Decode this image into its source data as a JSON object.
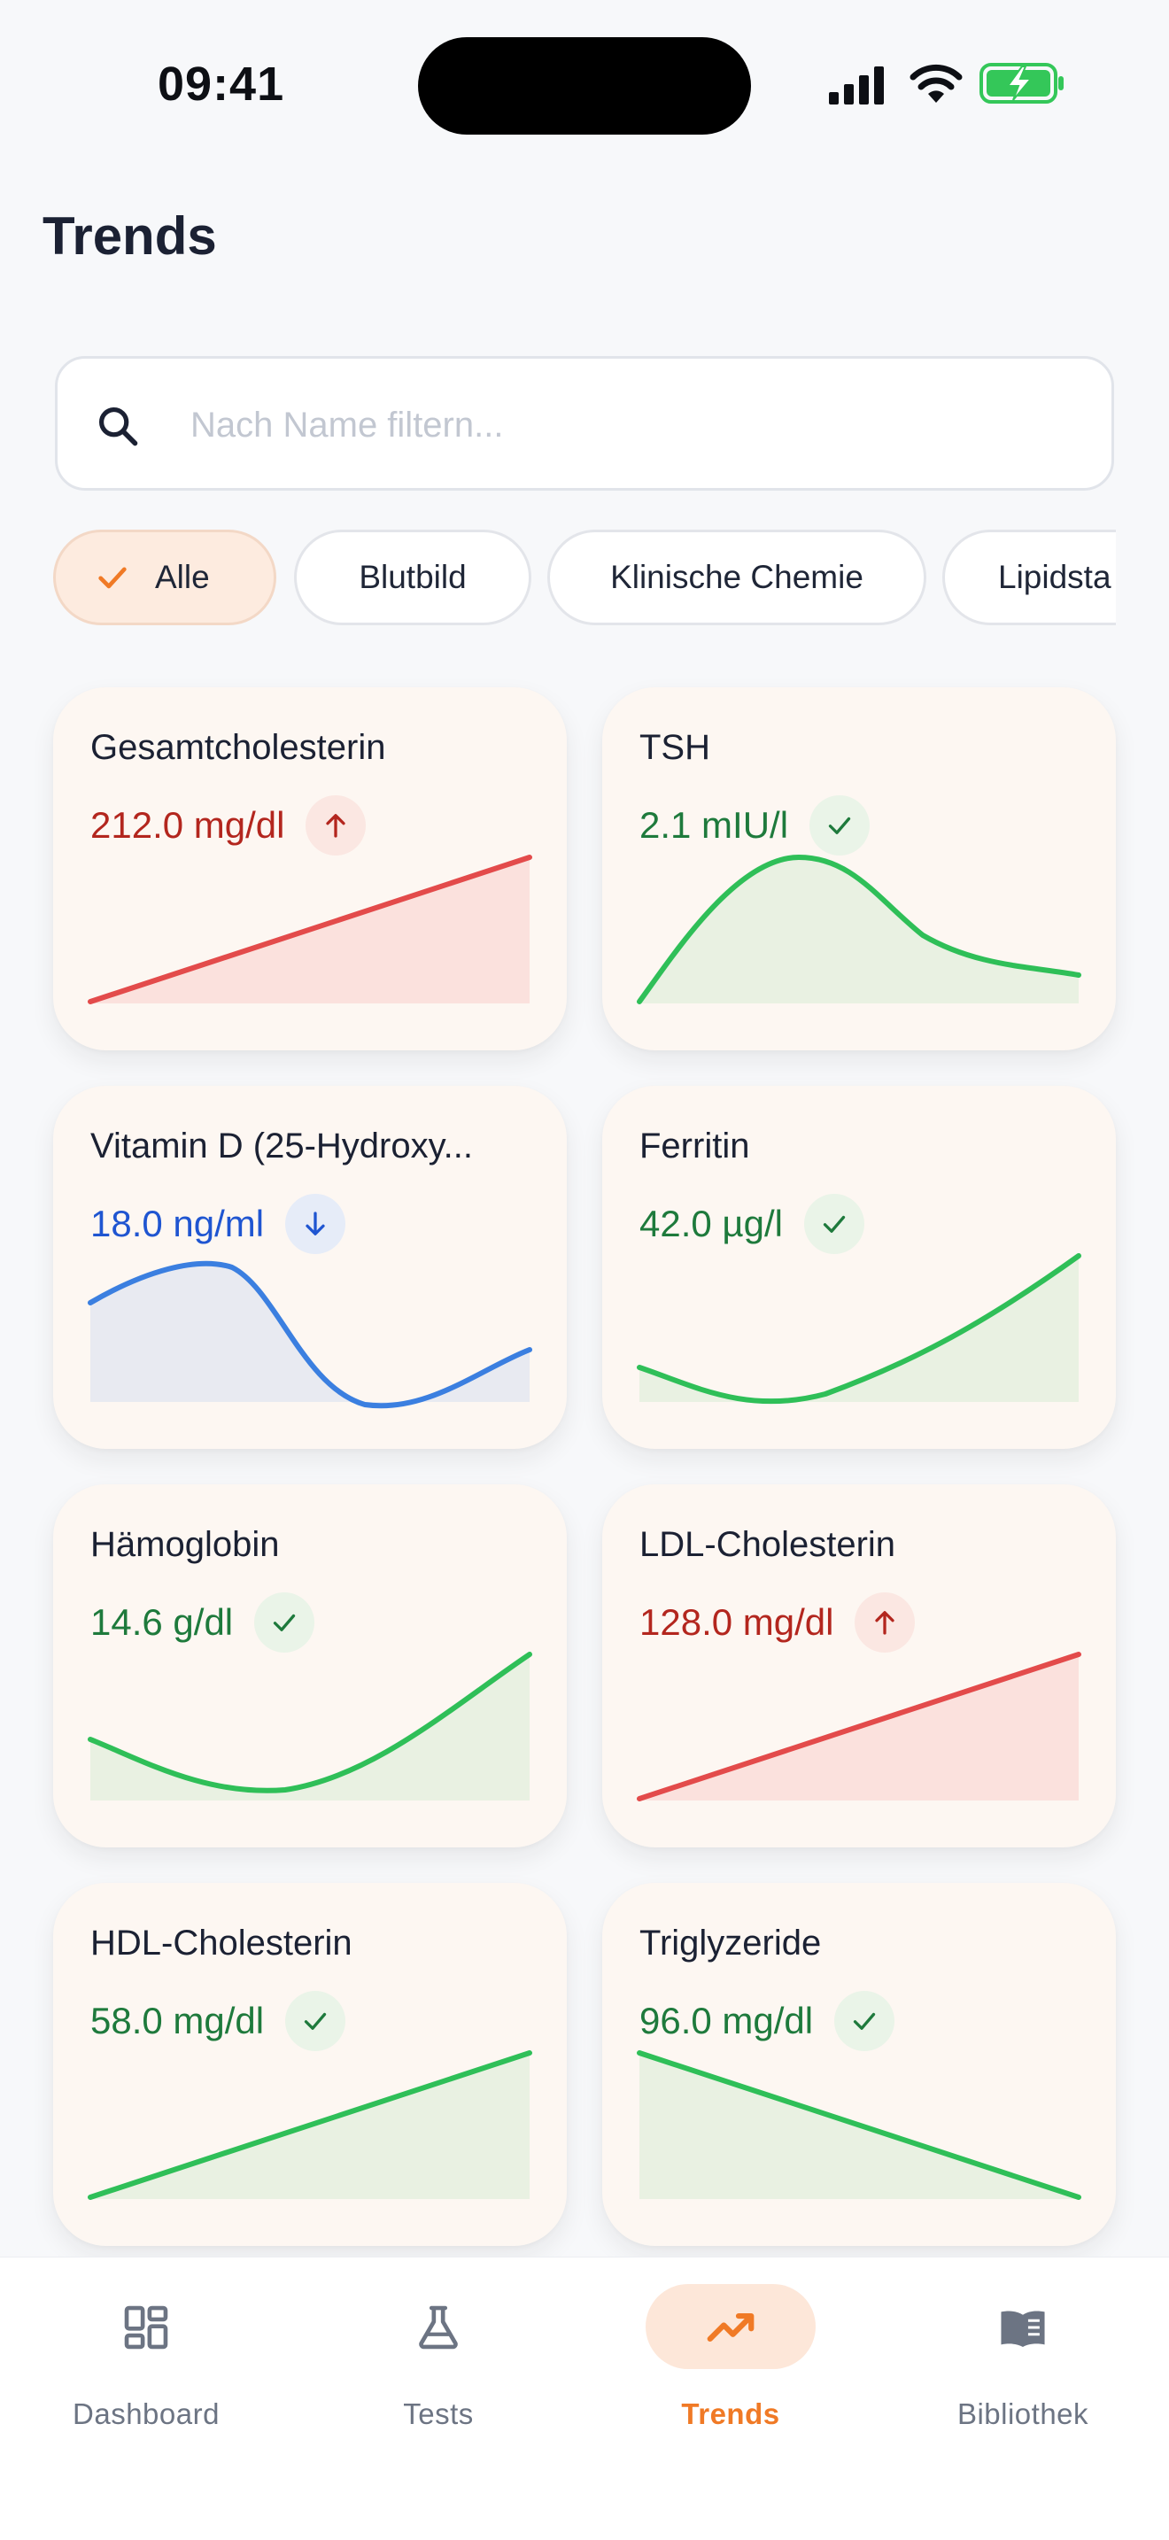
{
  "status_bar": {
    "time": "09:41"
  },
  "header": {
    "title": "Trends"
  },
  "search": {
    "placeholder": "Nach Name filtern...",
    "icon": "search-icon"
  },
  "filters": [
    {
      "label": "Alle",
      "selected": true
    },
    {
      "label": "Blutbild",
      "selected": false
    },
    {
      "label": "Klinische Chemie",
      "selected": false
    },
    {
      "label": "Lipidsta",
      "selected": false
    }
  ],
  "colors": {
    "accent": "#f07a26",
    "high": "#b3261e",
    "high_line": "#e34b4b",
    "normal": "#1e7a3c",
    "normal_line": "#2fbf58",
    "low": "#1f55d1",
    "low_line": "#3b7fe0"
  },
  "cards": [
    {
      "name": "Gesamtcholesterin",
      "value": "212.0 mg/dl",
      "status": "high"
    },
    {
      "name": "TSH",
      "value": "2.1 mIU/l",
      "status": "normal"
    },
    {
      "name": "Vitamin D (25-Hydroxy...",
      "value": "18.0 ng/ml",
      "status": "low"
    },
    {
      "name": "Ferritin",
      "value": "42.0 µg/l",
      "status": "normal"
    },
    {
      "name": "Hämoglobin",
      "value": "14.6 g/dl",
      "status": "normal"
    },
    {
      "name": "LDL-Cholesterin",
      "value": "128.0 mg/dl",
      "status": "high"
    },
    {
      "name": "HDL-Cholesterin",
      "value": "58.0 mg/dl",
      "status": "normal"
    },
    {
      "name": "Triglyzeride",
      "value": "96.0 mg/dl",
      "status": "normal"
    }
  ],
  "nav": [
    {
      "label": "Dashboard",
      "icon": "dashboard-icon",
      "active": false
    },
    {
      "label": "Tests",
      "icon": "flask-icon",
      "active": false
    },
    {
      "label": "Trends",
      "icon": "trending-up-icon",
      "active": true
    },
    {
      "label": "Bibliothek",
      "icon": "book-icon",
      "active": false
    }
  ]
}
